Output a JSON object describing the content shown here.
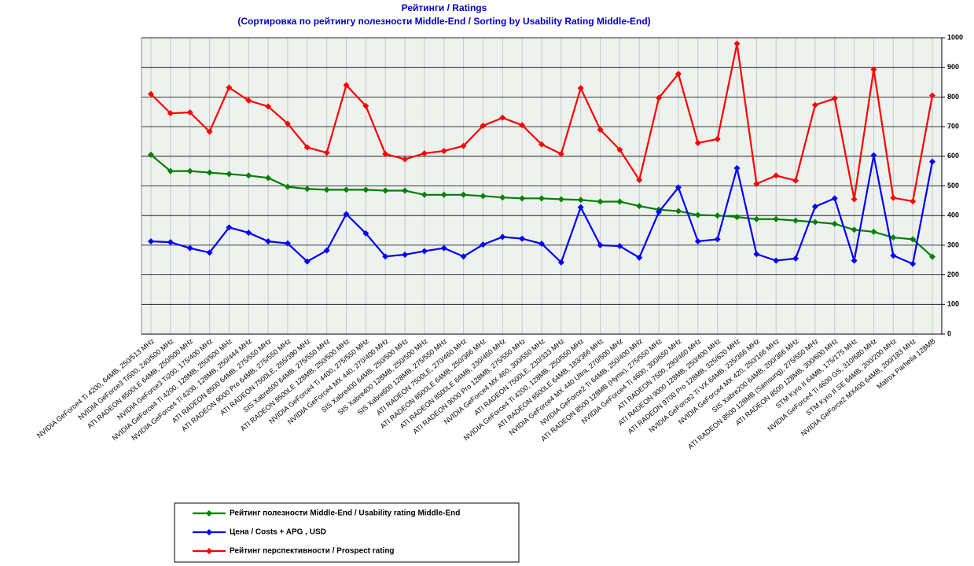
{
  "chart_data": {
    "type": "line",
    "title": "Рейтинги / Ratings",
    "subtitle": "(Сортировка по рейтингу полезности Middle-End / Sorting by Usability Rating Middle-End)",
    "categories": [
      "NVIDIA GeForce4 Ti 4200, 64MB, 250/513 MHz",
      "NVIDIA GeForce3 Ti500, 240/500 MHz",
      "ATI RADEON 8500LE 64MB, 250/500 MHz",
      "NVIDIA GeForce3 Ti200, 175/400 MHz",
      "NVIDIA GeForce4 Ti 4200, 128MB, 250/500 MHz",
      "NVIDIA GeForce4 Ti 4200, 128MB, 250/444 MHz",
      "ATI RADEON 8500 64MB, 275/550 MHz",
      "ATI RADEON 9000 Pro 64MB, 275/550 MHz",
      "ATI RADEON 7500LE, 265/390 MHz",
      "SIS Xabre600 64MB, 275/550 MHz",
      "ATI RADEON 8500LE 128MB, 250/500 MHz",
      "NVIDIA GeForce4 Ti 4400, 275/550 MHz",
      "NVIDIA GeForce4 MX 440, 270/400 MHz",
      "SIS Xabre400 64MB, 250/500 MHz",
      "SIS Xabre400 128MB, 250/500 MHz",
      "SIS Xabre600 128MB, 275/550 MHz",
      "ATI RADEON 7500LE, 270/460 MHz",
      "ATI RADEON 8500LE 64MB, 250/366 MHz",
      "ATI RADEON 8500LE 64MB, 230/460 MHz",
      "ATI RADEON 9000 Pro 128MB, 275/550 MHz",
      "NVIDIA GeForce4 MX 460, 300/550 MHz",
      "ATI RADEON 7500LE, 230/333 MHz",
      "NVIDIA GeForce4 Ti 4200, 128MB, 250/550 MHz",
      "ATI RADEON 8500LE 64MB, 183/366 MHz",
      "NVIDIA GeForce4 MX 440 Ultra, 270/500 MHz",
      "NVIDIA GeForce2 Ti 64MB, 250/400 MHz",
      "ATI RADEON 8500 128MB (Hynix), 275/550 MHz",
      "NVIDIA GeForce4 Ti 4600, 300/650 MHz",
      "ATI RADEON 7500, 290/460 MHz",
      "ATI RADEON 9000 128MB, 250/400 MHz",
      "ATI RADEON 9700 Pro 128MB, 325/620 MHz",
      "NVIDIA GeForce2 Ti VX 64MB, 225/366 MHz",
      "NVIDIA GeForce4 MX 420, 250/166 MHz",
      "SIS Xabre200 64MB, 200/366 MHz",
      "ATI RADEON 8500 128MB (Samsung), 275/550 MHz",
      "ATI RADEON 8500 128MB, 300/600 MHz",
      "STM Kyro II 64MB, 175/175 MHz",
      "NVIDIA GeForce4 Ti 4600 GS, 310/680 MHz",
      "STM Kyro II SE 64MB, 200/200 MHz",
      "NVIDIA GeForce2 MX400 64MB, 200/183 MHz",
      "Matrox Parhelia 128MB"
    ],
    "series": [
      {
        "name": "Рейтинг полезности Middle-End / Usability rating Middle-End",
        "color": "#008000",
        "values": [
          605,
          550,
          550,
          545,
          540,
          535,
          527,
          497,
          490,
          487,
          487,
          487,
          484,
          484,
          470,
          470,
          470,
          466,
          461,
          458,
          458,
          455,
          453,
          447,
          447,
          432,
          420,
          415,
          402,
          400,
          395,
          388,
          388,
          383,
          378,
          372,
          352,
          345,
          326,
          320,
          261
        ]
      },
      {
        "name": "Цена / Costs + APG , USD",
        "color": "#0000ff",
        "values": [
          313,
          310,
          290,
          275,
          360,
          342,
          313,
          306,
          245,
          282,
          405,
          340,
          262,
          268,
          280,
          290,
          262,
          302,
          328,
          322,
          305,
          242,
          428,
          300,
          297,
          258,
          412,
          495,
          313,
          320,
          560,
          270,
          248,
          255,
          430,
          458,
          248,
          603,
          265,
          237,
          582
        ]
      },
      {
        "name": "Рейтинг перспективности / Prospect rating",
        "color": "#ff0000",
        "values": [
          810,
          745,
          748,
          683,
          832,
          788,
          768,
          710,
          630,
          612,
          840,
          770,
          608,
          590,
          610,
          618,
          635,
          703,
          730,
          705,
          640,
          608,
          830,
          690,
          622,
          520,
          797,
          878,
          645,
          658,
          980,
          507,
          535,
          518,
          773,
          795,
          455,
          893,
          460,
          448,
          805
        ]
      }
    ],
    "ylim": [
      0,
      1000
    ],
    "yticks": [
      0,
      100,
      200,
      300,
      400,
      500,
      600,
      700,
      800,
      900,
      1000
    ],
    "grid": true,
    "y_axis_side": "right",
    "legend": "bottom-left"
  }
}
